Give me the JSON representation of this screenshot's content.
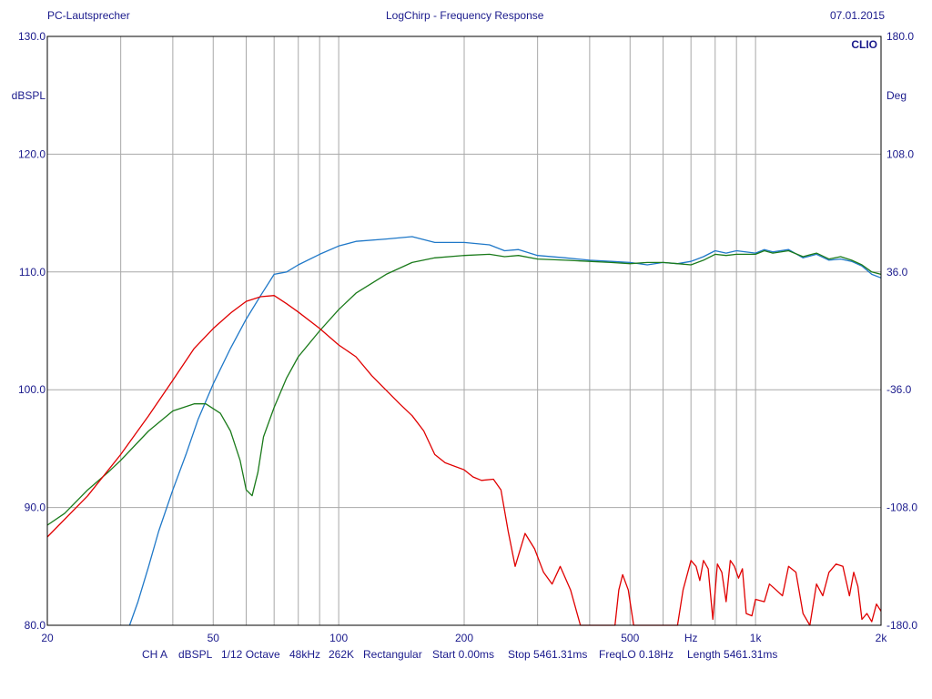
{
  "header": {
    "left": "PC-Lautsprecher",
    "center": "LogChirp - Frequency Response",
    "right": "07.01.2015"
  },
  "brand": "CLIO",
  "colors": {
    "text": "#1a1a8c",
    "grid": "#a8a8a8",
    "frame": "#000000",
    "series_blue": "#1f78c8",
    "series_green": "#1a7a1a",
    "series_red": "#e00000"
  },
  "footer": [
    "CH A",
    "dBSPL",
    "1/12 Octave",
    "48kHz",
    "262K",
    "Rectangular",
    "Start 0.00ms",
    "Stop 5461.31ms",
    "FreqLO 0.18Hz",
    "Length 5461.31ms"
  ],
  "chart_data": {
    "type": "line",
    "xscale": "log",
    "xlim": [
      20,
      2000
    ],
    "ylim": [
      80,
      130
    ],
    "y2lim": [
      -180,
      180
    ],
    "ylabel": "dBSPL",
    "y2label": "Deg",
    "xunit": "Hz",
    "grid": true,
    "x_tick_labels": [
      {
        "value": 20,
        "label": "20"
      },
      {
        "value": 50,
        "label": "50"
      },
      {
        "value": 100,
        "label": "100"
      },
      {
        "value": 200,
        "label": "200"
      },
      {
        "value": 500,
        "label": "500"
      },
      {
        "value": 1000,
        "label": "1k"
      },
      {
        "value": 2000,
        "label": "2k"
      }
    ],
    "x_gridlines": [
      20,
      30,
      40,
      50,
      60,
      70,
      80,
      90,
      100,
      200,
      300,
      400,
      500,
      600,
      700,
      800,
      900,
      1000,
      2000
    ],
    "y_ticks": [
      {
        "value": 130,
        "label": "130.0"
      },
      {
        "value": 120,
        "label": "120.0"
      },
      {
        "value": 110,
        "label": "110.0"
      },
      {
        "value": 100,
        "label": "100.0"
      },
      {
        "value": 90,
        "label": "90.0"
      },
      {
        "value": 80,
        "label": "80.0"
      }
    ],
    "y2_ticks": [
      {
        "value": 180,
        "label": "180.0"
      },
      {
        "value": 108,
        "label": "108.0"
      },
      {
        "value": 36,
        "label": "36.0"
      },
      {
        "value": -36,
        "label": "-36.0"
      },
      {
        "value": -108,
        "label": "-108.0"
      },
      {
        "value": -180,
        "label": "-180.0"
      }
    ],
    "series": [
      {
        "color": "#1f78c8",
        "points": [
          [
            31.5,
            80
          ],
          [
            33,
            82
          ],
          [
            35,
            85
          ],
          [
            37,
            88
          ],
          [
            40,
            91.5
          ],
          [
            43,
            94.5
          ],
          [
            46,
            97.5
          ],
          [
            50,
            100.5
          ],
          [
            55,
            103.5
          ],
          [
            60,
            106
          ],
          [
            65,
            108
          ],
          [
            70,
            109.8
          ],
          [
            75,
            110
          ],
          [
            80,
            110.6
          ],
          [
            90,
            111.5
          ],
          [
            100,
            112.2
          ],
          [
            110,
            112.6
          ],
          [
            130,
            112.8
          ],
          [
            150,
            113
          ],
          [
            170,
            112.5
          ],
          [
            200,
            112.5
          ],
          [
            230,
            112.3
          ],
          [
            250,
            111.8
          ],
          [
            270,
            111.9
          ],
          [
            300,
            111.4
          ],
          [
            350,
            111.2
          ],
          [
            400,
            111
          ],
          [
            450,
            110.9
          ],
          [
            500,
            110.8
          ],
          [
            550,
            110.6
          ],
          [
            600,
            110.8
          ],
          [
            650,
            110.7
          ],
          [
            700,
            110.9
          ],
          [
            750,
            111.3
          ],
          [
            800,
            111.8
          ],
          [
            850,
            111.6
          ],
          [
            900,
            111.8
          ],
          [
            1000,
            111.6
          ],
          [
            1050,
            111.9
          ],
          [
            1100,
            111.7
          ],
          [
            1200,
            111.9
          ],
          [
            1300,
            111.2
          ],
          [
            1400,
            111.5
          ],
          [
            1500,
            111
          ],
          [
            1600,
            111.1
          ],
          [
            1700,
            110.9
          ],
          [
            1800,
            110.5
          ],
          [
            1900,
            109.8
          ],
          [
            2000,
            109.5
          ]
        ]
      },
      {
        "color": "#1a7a1a",
        "points": [
          [
            20,
            88.5
          ],
          [
            22,
            89.5
          ],
          [
            25,
            91.5
          ],
          [
            28,
            93
          ],
          [
            30,
            94
          ],
          [
            35,
            96.5
          ],
          [
            40,
            98.2
          ],
          [
            45,
            98.8
          ],
          [
            48,
            98.8
          ],
          [
            52,
            98
          ],
          [
            55,
            96.5
          ],
          [
            58,
            94
          ],
          [
            60,
            91.5
          ],
          [
            62,
            91
          ],
          [
            64,
            93
          ],
          [
            66,
            96
          ],
          [
            70,
            98.5
          ],
          [
            75,
            101
          ],
          [
            80,
            102.8
          ],
          [
            90,
            105
          ],
          [
            100,
            106.8
          ],
          [
            110,
            108.2
          ],
          [
            130,
            109.8
          ],
          [
            150,
            110.8
          ],
          [
            170,
            111.2
          ],
          [
            200,
            111.4
          ],
          [
            230,
            111.5
          ],
          [
            250,
            111.3
          ],
          [
            270,
            111.4
          ],
          [
            300,
            111.1
          ],
          [
            350,
            111
          ],
          [
            400,
            110.9
          ],
          [
            450,
            110.8
          ],
          [
            500,
            110.7
          ],
          [
            550,
            110.8
          ],
          [
            600,
            110.8
          ],
          [
            650,
            110.7
          ],
          [
            700,
            110.6
          ],
          [
            750,
            111
          ],
          [
            800,
            111.5
          ],
          [
            850,
            111.4
          ],
          [
            900,
            111.5
          ],
          [
            1000,
            111.5
          ],
          [
            1050,
            111.8
          ],
          [
            1100,
            111.6
          ],
          [
            1200,
            111.8
          ],
          [
            1300,
            111.3
          ],
          [
            1400,
            111.6
          ],
          [
            1500,
            111.1
          ],
          [
            1600,
            111.3
          ],
          [
            1700,
            111
          ],
          [
            1800,
            110.6
          ],
          [
            1900,
            110
          ],
          [
            2000,
            109.8
          ]
        ]
      },
      {
        "color": "#e00000",
        "points": [
          [
            20,
            87.5
          ],
          [
            25,
            91
          ],
          [
            30,
            94.5
          ],
          [
            35,
            97.8
          ],
          [
            40,
            100.8
          ],
          [
            45,
            103.5
          ],
          [
            50,
            105.2
          ],
          [
            55,
            106.5
          ],
          [
            60,
            107.5
          ],
          [
            65,
            107.9
          ],
          [
            70,
            108
          ],
          [
            75,
            107.3
          ],
          [
            80,
            106.6
          ],
          [
            90,
            105.2
          ],
          [
            100,
            103.8
          ],
          [
            110,
            102.8
          ],
          [
            120,
            101.2
          ],
          [
            140,
            98.8
          ],
          [
            150,
            97.8
          ],
          [
            160,
            96.5
          ],
          [
            170,
            94.5
          ],
          [
            180,
            93.8
          ],
          [
            200,
            93.2
          ],
          [
            210,
            92.6
          ],
          [
            220,
            92.3
          ],
          [
            235,
            92.4
          ],
          [
            245,
            91.5
          ],
          [
            255,
            88
          ],
          [
            265,
            85
          ],
          [
            280,
            87.8
          ],
          [
            295,
            86.5
          ],
          [
            310,
            84.5
          ],
          [
            325,
            83.5
          ],
          [
            340,
            85
          ],
          [
            360,
            83
          ],
          [
            380,
            80
          ],
          [
            460,
            80
          ],
          [
            470,
            83
          ],
          [
            480,
            84.3
          ],
          [
            495,
            83
          ],
          [
            510,
            80
          ],
          [
            650,
            80
          ],
          [
            670,
            83
          ],
          [
            700,
            85.5
          ],
          [
            720,
            85
          ],
          [
            735,
            83.8
          ],
          [
            750,
            85.5
          ],
          [
            770,
            84.8
          ],
          [
            790,
            80.5
          ],
          [
            810,
            85.2
          ],
          [
            830,
            84.5
          ],
          [
            850,
            82
          ],
          [
            870,
            85.5
          ],
          [
            890,
            85
          ],
          [
            910,
            84
          ],
          [
            930,
            84.8
          ],
          [
            950,
            81
          ],
          [
            980,
            80.8
          ],
          [
            1000,
            82.2
          ],
          [
            1050,
            82
          ],
          [
            1080,
            83.5
          ],
          [
            1120,
            83
          ],
          [
            1160,
            82.5
          ],
          [
            1200,
            85
          ],
          [
            1250,
            84.5
          ],
          [
            1300,
            81
          ],
          [
            1350,
            80
          ],
          [
            1400,
            83.5
          ],
          [
            1450,
            82.5
          ],
          [
            1500,
            84.5
          ],
          [
            1560,
            85.2
          ],
          [
            1620,
            85
          ],
          [
            1680,
            82.5
          ],
          [
            1720,
            84.5
          ],
          [
            1760,
            83.3
          ],
          [
            1800,
            80.5
          ],
          [
            1850,
            81
          ],
          [
            1900,
            80.3
          ],
          [
            1950,
            81.8
          ],
          [
            2000,
            81.2
          ]
        ]
      }
    ]
  }
}
